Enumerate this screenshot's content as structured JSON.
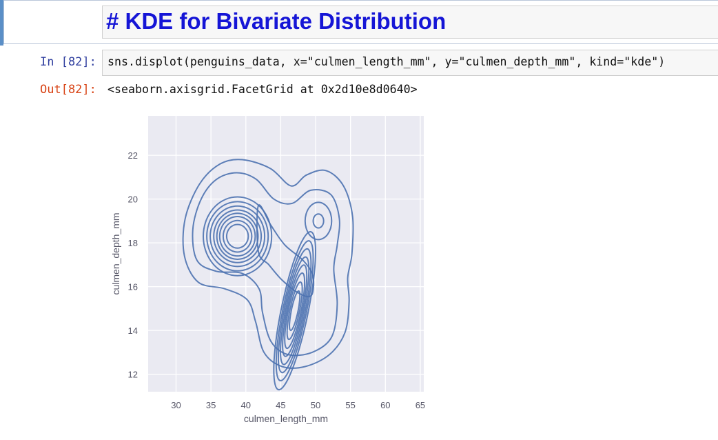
{
  "markdown_cell": {
    "source": "# KDE for Bivariate Distribution"
  },
  "code_cell": {
    "in_prompt": "In [82]:",
    "source": "sns.displot(penguins_data, x=\"culmen_length_mm\", y=\"culmen_depth_mm\", kind=\"kde\")",
    "out_prompt": "Out[82]:",
    "output_text": "<seaborn.axisgrid.FacetGrid at 0x2d10e8d0640>"
  },
  "colors": {
    "heading": "#1515d6",
    "in_prompt": "#303f9f",
    "out_prompt": "#d84315",
    "plot_background": "#eaeaf2",
    "grid": "#ffffff",
    "contour": "#4c72b0",
    "tick_label": "#555566"
  },
  "chart_data": {
    "type": "kde-contour",
    "xlabel": "culmen_length_mm",
    "ylabel": "culmen_depth_mm",
    "xlim": [
      26,
      65.5
    ],
    "ylim": [
      11.2,
      23.8
    ],
    "xticks": [
      30,
      35,
      40,
      45,
      50,
      55,
      60,
      65
    ],
    "yticks": [
      12,
      14,
      16,
      18,
      20,
      22
    ],
    "grid": true,
    "legend": "none",
    "density_modes": [
      {
        "x": 38.8,
        "y": 18.3
      },
      {
        "x": 46.8,
        "y": 14.8
      },
      {
        "x": 50.5,
        "y": 19.0
      }
    ],
    "contour_levels": 10
  }
}
